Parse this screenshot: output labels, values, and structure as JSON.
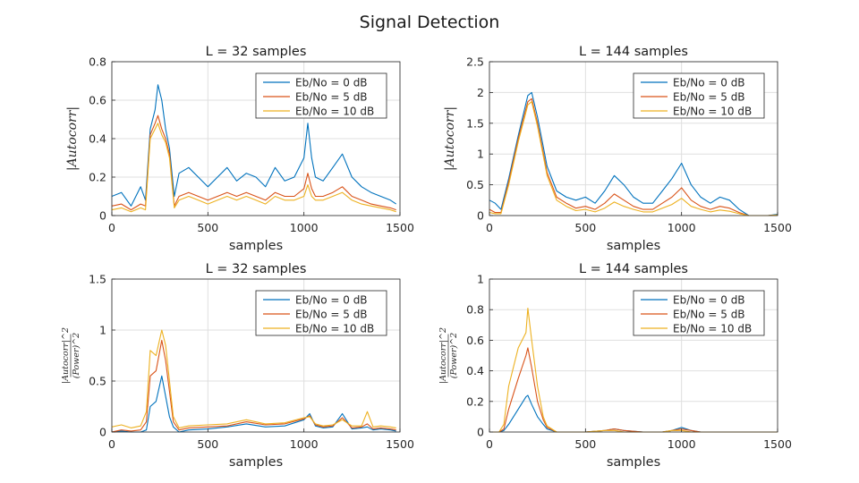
{
  "figure": {
    "title": "Signal Detection"
  },
  "chart_data": [
    {
      "type": "line",
      "title": "L = 32 samples",
      "xlabel": "samples",
      "ylabel": "|Autocorr|",
      "xlim": [
        0,
        1500
      ],
      "ylim": [
        0,
        0.8
      ],
      "xticks": [
        0,
        500,
        1000,
        1500
      ],
      "yticks": [
        0,
        0.2,
        0.4,
        0.6,
        0.8
      ],
      "yticklabels": [
        "0",
        "0.2",
        "0.4",
        "0.6",
        "0.8"
      ],
      "grid": true,
      "legend_position": "top-right",
      "x": [
        0,
        50,
        100,
        150,
        175,
        200,
        225,
        240,
        260,
        280,
        300,
        325,
        350,
        400,
        450,
        500,
        550,
        600,
        650,
        700,
        750,
        800,
        850,
        900,
        950,
        1000,
        1020,
        1040,
        1060,
        1100,
        1150,
        1200,
        1250,
        1300,
        1350,
        1400,
        1450,
        1480
      ],
      "series": [
        {
          "name": "Eb/No = 0 dB",
          "color": "#0072BD",
          "values": [
            0.1,
            0.12,
            0.05,
            0.15,
            0.08,
            0.45,
            0.55,
            0.68,
            0.6,
            0.45,
            0.35,
            0.1,
            0.22,
            0.25,
            0.2,
            0.15,
            0.2,
            0.25,
            0.18,
            0.22,
            0.2,
            0.15,
            0.25,
            0.18,
            0.2,
            0.3,
            0.48,
            0.3,
            0.2,
            0.18,
            0.25,
            0.32,
            0.2,
            0.15,
            0.12,
            0.1,
            0.08,
            0.06
          ]
        },
        {
          "name": "Eb/No = 5 dB",
          "color": "#D95319",
          "values": [
            0.05,
            0.06,
            0.03,
            0.06,
            0.05,
            0.42,
            0.48,
            0.52,
            0.45,
            0.4,
            0.32,
            0.05,
            0.1,
            0.12,
            0.1,
            0.08,
            0.1,
            0.12,
            0.1,
            0.12,
            0.1,
            0.08,
            0.12,
            0.1,
            0.1,
            0.14,
            0.22,
            0.14,
            0.1,
            0.1,
            0.12,
            0.15,
            0.1,
            0.08,
            0.06,
            0.05,
            0.04,
            0.03
          ]
        },
        {
          "name": "Eb/No = 10 dB",
          "color": "#EDB120",
          "values": [
            0.03,
            0.04,
            0.02,
            0.04,
            0.03,
            0.4,
            0.45,
            0.48,
            0.42,
            0.38,
            0.3,
            0.04,
            0.08,
            0.1,
            0.08,
            0.06,
            0.08,
            0.1,
            0.08,
            0.1,
            0.08,
            0.06,
            0.1,
            0.08,
            0.08,
            0.1,
            0.16,
            0.1,
            0.08,
            0.08,
            0.1,
            0.12,
            0.08,
            0.06,
            0.05,
            0.04,
            0.03,
            0.02
          ]
        }
      ]
    },
    {
      "type": "line",
      "title": "L = 144 samples",
      "xlabel": "samples",
      "ylabel": "|Autocorr|",
      "xlim": [
        0,
        1500
      ],
      "ylim": [
        0,
        2.5
      ],
      "xticks": [
        0,
        500,
        1000,
        1500
      ],
      "yticks": [
        0,
        0.5,
        1,
        1.5,
        2,
        2.5
      ],
      "yticklabels": [
        "0",
        "0.5",
        "1",
        "1.5",
        "2",
        "2.5"
      ],
      "grid": true,
      "legend_position": "top-right",
      "x": [
        0,
        30,
        60,
        100,
        150,
        200,
        220,
        250,
        300,
        350,
        400,
        450,
        500,
        550,
        600,
        650,
        700,
        750,
        800,
        850,
        900,
        950,
        1000,
        1050,
        1100,
        1150,
        1200,
        1250,
        1300,
        1350,
        1400,
        1450,
        1500
      ],
      "series": [
        {
          "name": "Eb/No = 0 dB",
          "color": "#0072BD",
          "values": [
            0.25,
            0.2,
            0.1,
            0.6,
            1.3,
            1.95,
            2.0,
            1.6,
            0.8,
            0.4,
            0.3,
            0.25,
            0.3,
            0.2,
            0.4,
            0.65,
            0.5,
            0.3,
            0.2,
            0.2,
            0.4,
            0.6,
            0.85,
            0.5,
            0.3,
            0.2,
            0.3,
            0.25,
            0.1,
            0.0,
            0.0,
            0.0,
            0.02
          ]
        },
        {
          "name": "Eb/No = 5 dB",
          "color": "#D95319",
          "values": [
            0.1,
            0.05,
            0.05,
            0.55,
            1.25,
            1.85,
            1.9,
            1.5,
            0.7,
            0.3,
            0.2,
            0.12,
            0.15,
            0.1,
            0.2,
            0.35,
            0.25,
            0.15,
            0.1,
            0.1,
            0.2,
            0.3,
            0.45,
            0.25,
            0.15,
            0.1,
            0.15,
            0.12,
            0.05,
            0.0,
            0.0,
            0.0,
            0.01
          ]
        },
        {
          "name": "Eb/No = 10 dB",
          "color": "#EDB120",
          "values": [
            0.05,
            0.03,
            0.03,
            0.5,
            1.2,
            1.8,
            1.85,
            1.45,
            0.65,
            0.25,
            0.15,
            0.08,
            0.1,
            0.06,
            0.12,
            0.22,
            0.15,
            0.1,
            0.06,
            0.06,
            0.12,
            0.18,
            0.28,
            0.15,
            0.1,
            0.06,
            0.09,
            0.07,
            0.03,
            0.0,
            0.0,
            0.0,
            0.01
          ]
        }
      ]
    },
    {
      "type": "line",
      "title": "L = 32 samples",
      "xlabel": "samples",
      "ylabel": "|Autocorr|^2 / (Power)^2",
      "xlim": [
        0,
        1500
      ],
      "ylim": [
        0,
        1.5
      ],
      "xticks": [
        0,
        500,
        1000,
        1500
      ],
      "yticks": [
        0,
        0.5,
        1,
        1.5
      ],
      "yticklabels": [
        "0",
        "0.5",
        "1",
        "1.5"
      ],
      "grid": true,
      "legend_position": "top-right",
      "x": [
        0,
        50,
        100,
        150,
        180,
        200,
        230,
        260,
        280,
        300,
        320,
        350,
        400,
        500,
        600,
        700,
        800,
        900,
        1000,
        1030,
        1060,
        1100,
        1150,
        1200,
        1250,
        1300,
        1330,
        1360,
        1400,
        1450,
        1480
      ],
      "series": [
        {
          "name": "Eb/No = 0 dB",
          "color": "#0072BD",
          "values": [
            0.0,
            0.01,
            0.0,
            0.0,
            0.02,
            0.25,
            0.3,
            0.55,
            0.35,
            0.15,
            0.05,
            0.0,
            0.02,
            0.03,
            0.05,
            0.08,
            0.05,
            0.06,
            0.12,
            0.18,
            0.06,
            0.04,
            0.05,
            0.18,
            0.03,
            0.04,
            0.05,
            0.02,
            0.03,
            0.02,
            0.01
          ]
        },
        {
          "name": "Eb/No = 5 dB",
          "color": "#D95319",
          "values": [
            0.0,
            0.02,
            0.01,
            0.02,
            0.1,
            0.55,
            0.6,
            0.9,
            0.7,
            0.4,
            0.1,
            0.02,
            0.04,
            0.05,
            0.06,
            0.1,
            0.07,
            0.08,
            0.13,
            0.16,
            0.07,
            0.05,
            0.06,
            0.14,
            0.04,
            0.05,
            0.08,
            0.03,
            0.04,
            0.03,
            0.02
          ]
        },
        {
          "name": "Eb/No = 10 dB",
          "color": "#EDB120",
          "values": [
            0.05,
            0.07,
            0.04,
            0.06,
            0.2,
            0.8,
            0.75,
            1.0,
            0.85,
            0.5,
            0.15,
            0.04,
            0.06,
            0.07,
            0.08,
            0.12,
            0.08,
            0.09,
            0.14,
            0.15,
            0.08,
            0.06,
            0.07,
            0.12,
            0.06,
            0.06,
            0.2,
            0.05,
            0.06,
            0.05,
            0.04
          ]
        }
      ]
    },
    {
      "type": "line",
      "title": "L = 144 samples",
      "xlabel": "samples",
      "ylabel": "|Autocorr|^2 / (Power)^2",
      "xlim": [
        0,
        1500
      ],
      "ylim": [
        0,
        1
      ],
      "xticks": [
        0,
        500,
        1000,
        1500
      ],
      "yticks": [
        0,
        0.2,
        0.4,
        0.6,
        0.8,
        1
      ],
      "yticklabels": [
        "0",
        "0.2",
        "0.4",
        "0.6",
        "0.8",
        "1"
      ],
      "grid": true,
      "legend_position": "top-right",
      "x": [
        0,
        50,
        75,
        100,
        150,
        190,
        200,
        220,
        250,
        280,
        300,
        350,
        400,
        500,
        600,
        650,
        700,
        800,
        900,
        950,
        1000,
        1050,
        1100,
        1200,
        1300,
        1400,
        1500
      ],
      "series": [
        {
          "name": "Eb/No = 0 dB",
          "color": "#0072BD",
          "values": [
            0.0,
            0.0,
            0.01,
            0.05,
            0.15,
            0.23,
            0.24,
            0.18,
            0.1,
            0.05,
            0.02,
            0.0,
            0.0,
            0.0,
            0.01,
            0.02,
            0.01,
            0.0,
            0.0,
            0.01,
            0.03,
            0.01,
            0.0,
            0.0,
            0.0,
            0.0,
            0.0
          ]
        },
        {
          "name": "Eb/No = 5 dB",
          "color": "#D95319",
          "values": [
            0.0,
            0.0,
            0.02,
            0.15,
            0.35,
            0.5,
            0.55,
            0.42,
            0.2,
            0.08,
            0.03,
            0.0,
            0.0,
            0.0,
            0.01,
            0.02,
            0.01,
            0.0,
            0.0,
            0.01,
            0.02,
            0.01,
            0.0,
            0.0,
            0.0,
            0.0,
            0.0
          ]
        },
        {
          "name": "Eb/No = 10 dB",
          "color": "#EDB120",
          "values": [
            0.0,
            0.0,
            0.05,
            0.3,
            0.55,
            0.65,
            0.81,
            0.6,
            0.3,
            0.1,
            0.04,
            0.0,
            0.0,
            0.0,
            0.01,
            0.01,
            0.0,
            0.0,
            0.0,
            0.01,
            0.01,
            0.0,
            0.0,
            0.0,
            0.0,
            0.0,
            0.0
          ]
        }
      ]
    }
  ]
}
